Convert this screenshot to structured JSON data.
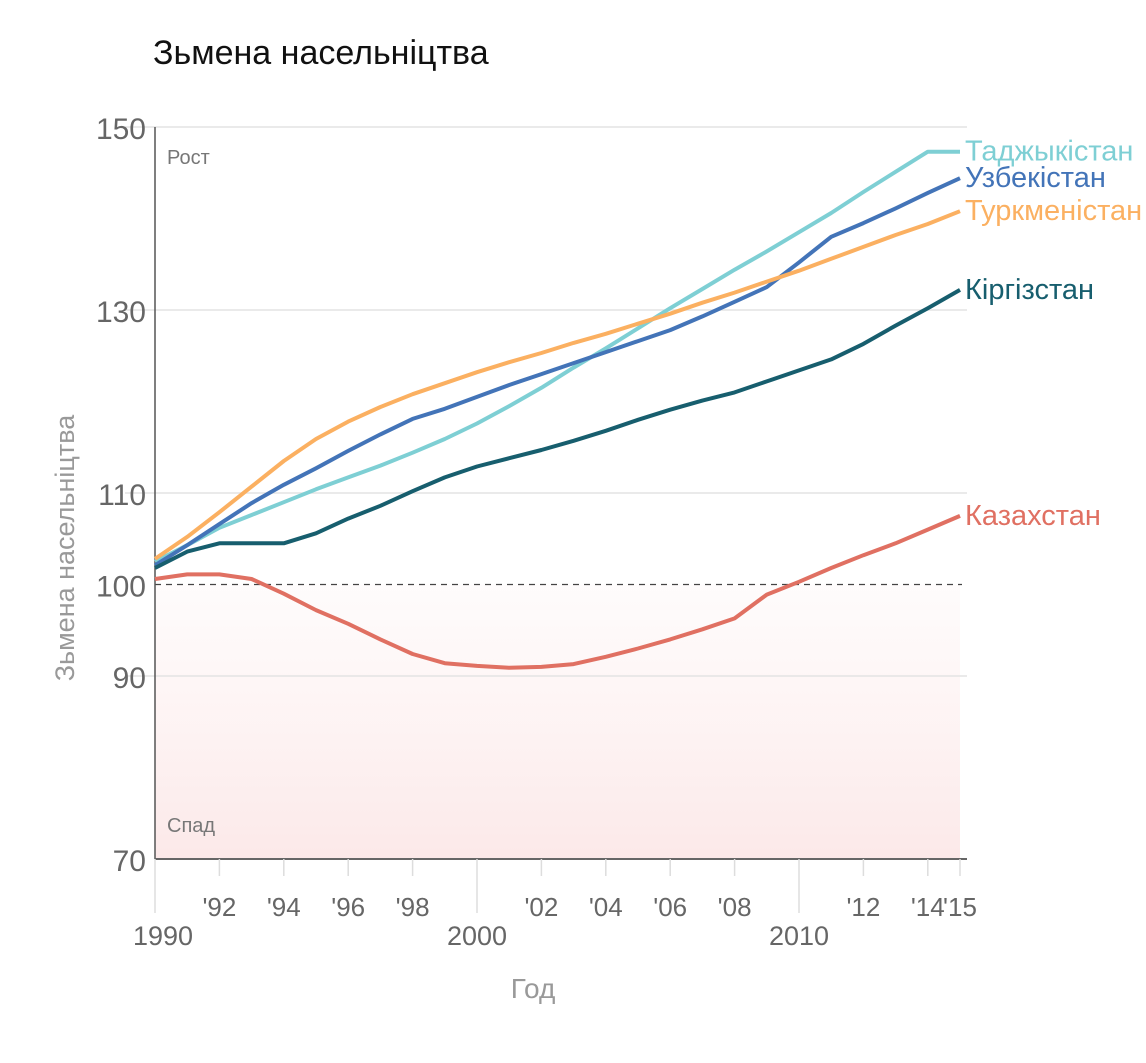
{
  "chart_data": {
    "type": "line",
    "title": "Зьмена насельніцтва",
    "xlabel": "Год",
    "ylabel": "Зьмена насельніцтва",
    "ylim": [
      70,
      150
    ],
    "xlim": [
      1990,
      2015
    ],
    "yticks": [
      70,
      90,
      100,
      110,
      130,
      150
    ],
    "reference_line": 100,
    "zone_labels": {
      "growth": "Рост",
      "decline": "Спад"
    },
    "xticks_minor": [
      {
        "year": 1992,
        "label": "'92"
      },
      {
        "year": 1994,
        "label": "'94"
      },
      {
        "year": 1996,
        "label": "'96"
      },
      {
        "year": 1998,
        "label": "'98"
      },
      {
        "year": 2002,
        "label": "'02"
      },
      {
        "year": 2004,
        "label": "'04"
      },
      {
        "year": 2006,
        "label": "'06"
      },
      {
        "year": 2008,
        "label": "'08"
      },
      {
        "year": 2012,
        "label": "'12"
      },
      {
        "year": 2014,
        "label": "'14"
      },
      {
        "year": 2015,
        "label": "'15"
      }
    ],
    "xticks_major": [
      {
        "year": 1990,
        "label": "1990"
      },
      {
        "year": 2000,
        "label": "2000"
      },
      {
        "year": 2010,
        "label": "2010"
      }
    ],
    "x": [
      1990,
      1991,
      1992,
      1993,
      1994,
      1995,
      1996,
      1997,
      1998,
      1999,
      2000,
      2001,
      2002,
      2003,
      2004,
      2005,
      2006,
      2007,
      2008,
      2009,
      2010,
      2011,
      2012,
      2013,
      2014,
      2015
    ],
    "series": [
      {
        "name": "Таджыкістан",
        "color": "#7ecfd4",
        "values": [
          102.5,
          104.3,
          106.2,
          107.6,
          109,
          110.4,
          111.7,
          113,
          114.4,
          115.9,
          117.6,
          119.5,
          121.5,
          123.7,
          125.8,
          128,
          130.2,
          132.3,
          134.4,
          136.4,
          138.5,
          140.6,
          142.9,
          145.1,
          147.3,
          147.3
        ]
      },
      {
        "name": "Узбекістан",
        "color": "#4374b8",
        "values": [
          102.1,
          104.3,
          106.6,
          108.9,
          110.9,
          112.7,
          114.6,
          116.4,
          118.1,
          119.2,
          120.5,
          121.8,
          123,
          124.2,
          125.4,
          126.6,
          127.8,
          129.3,
          130.9,
          132.5,
          135.2,
          138,
          139.5,
          141.1,
          142.8,
          144.4
        ]
      },
      {
        "name": "Туркменістан",
        "color": "#fbb061",
        "values": [
          102.8,
          105.2,
          107.9,
          110.7,
          113.5,
          115.9,
          117.8,
          119.4,
          120.8,
          122,
          123.2,
          124.3,
          125.3,
          126.4,
          127.4,
          128.5,
          129.6,
          130.8,
          131.9,
          133.1,
          134.3,
          135.6,
          136.9,
          138.2,
          139.4,
          140.8
        ]
      },
      {
        "name": "Кіргізстан",
        "color": "#175e6e",
        "values": [
          101.8,
          103.6,
          104.5,
          104.5,
          104.5,
          105.6,
          107.2,
          108.6,
          110.2,
          111.7,
          112.9,
          113.8,
          114.7,
          115.7,
          116.8,
          118,
          119.1,
          120.1,
          121,
          122.2,
          123.4,
          124.6,
          126.3,
          128.3,
          130.2,
          132.2
        ]
      },
      {
        "name": "Казахстан",
        "color": "#e07062",
        "values": [
          100.6,
          101.1,
          101.1,
          100.6,
          99,
          97.2,
          95.7,
          94,
          92.4,
          91.4,
          91.1,
          90.9,
          91,
          91.3,
          92.1,
          93,
          94,
          95.1,
          96.3,
          98.9,
          100.3,
          101.8,
          103.2,
          104.5,
          106,
          107.5
        ]
      }
    ]
  }
}
